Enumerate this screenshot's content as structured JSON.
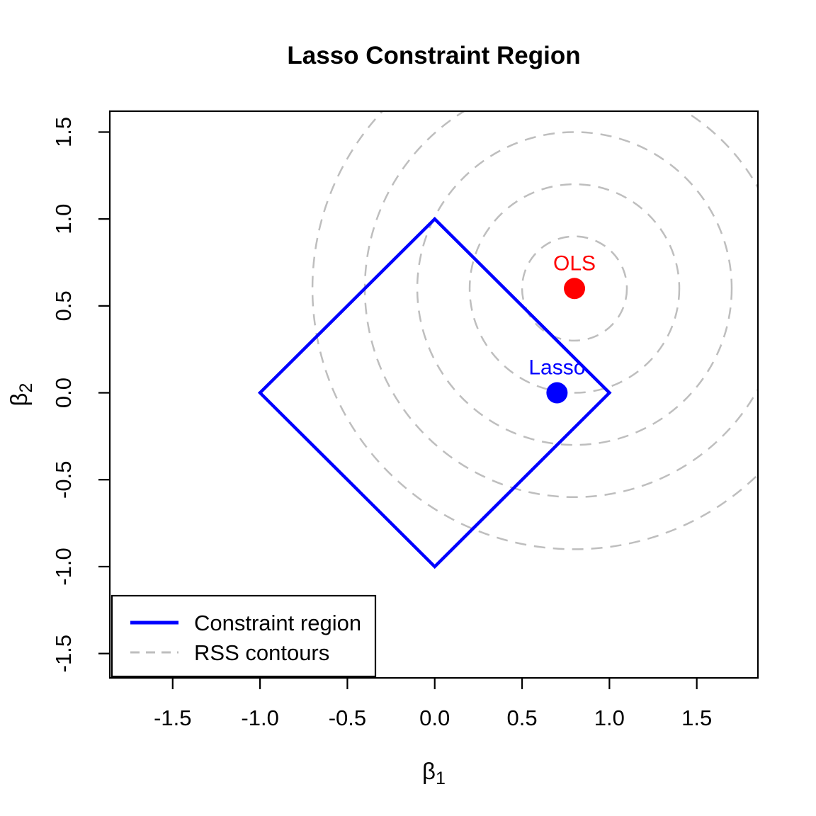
{
  "figure": {
    "background": "#FFFFFF",
    "foreground": "#000000"
  },
  "chart_data": {
    "type": "line",
    "title": "Lasso Constraint Region",
    "xlabel": {
      "symbol": "β",
      "subscript": "1"
    },
    "ylabel": {
      "symbol": "β",
      "subscript": "2"
    },
    "xlim": [
      -1.86,
      1.85
    ],
    "ylim": [
      -1.64,
      1.62
    ],
    "grid": false,
    "box": true,
    "xticks": {
      "values": [
        -1.5,
        -1.0,
        -0.5,
        0.0,
        0.5,
        1.0,
        1.5
      ],
      "labels": [
        "-1.5",
        "-1.0",
        "-0.5",
        "0.0",
        "0.5",
        "1.0",
        "1.5"
      ]
    },
    "yticks": {
      "values": [
        -1.5,
        -1.0,
        -0.5,
        0.0,
        0.5,
        1.0,
        1.5
      ],
      "labels": [
        "-1.5",
        "-1.0",
        "-0.5",
        "0.0",
        "0.5",
        "1.0",
        "1.5"
      ]
    },
    "series": [
      {
        "name": "Constraint region",
        "kind": "polygon",
        "vertices": [
          [
            0,
            1
          ],
          [
            1,
            0
          ],
          [
            0,
            -1
          ],
          [
            -1,
            0
          ]
        ],
        "color": "#0000FF",
        "style": "solid",
        "stroke_width": 4.5
      },
      {
        "name": "RSS contours",
        "kind": "circles",
        "center": [
          0.8,
          0.6
        ],
        "radii": [
          0.3,
          0.6,
          0.9,
          1.2,
          1.5
        ],
        "color": "#BEBEBE",
        "style": "dashed",
        "stroke_width": 2.5
      }
    ],
    "points": [
      {
        "name": "OLS",
        "x": 0.8,
        "y": 0.6,
        "color": "#FF0000",
        "label": "OLS"
      },
      {
        "name": "Lasso",
        "x": 0.7,
        "y": 0.0,
        "color": "#0000FF",
        "label": "Lasso"
      }
    ],
    "legend": {
      "position": "bottomleft",
      "entries": [
        {
          "label": "Constraint region",
          "color": "#0000FF",
          "style": "solid",
          "line_width": 5
        },
        {
          "label": "RSS contours",
          "color": "#BEBEBE",
          "style": "dashed",
          "line_width": 3
        }
      ]
    }
  }
}
